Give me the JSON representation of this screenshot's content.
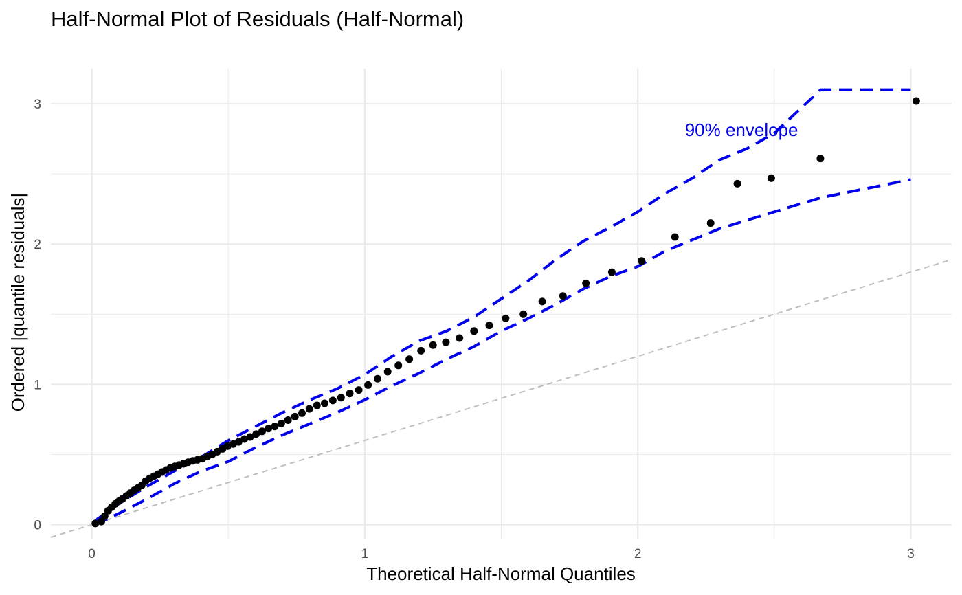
{
  "chart_data": {
    "type": "scatter",
    "title": "Half-Normal Plot of Residuals (Half-Normal)",
    "xlabel": "Theoretical Half-Normal Quantiles",
    "ylabel": "Ordered |quantile residuals|",
    "xlim": [
      -0.15,
      3.15
    ],
    "ylim": [
      -0.1,
      3.25
    ],
    "x_ticks": [
      0,
      1,
      2,
      3
    ],
    "y_ticks": [
      0,
      1,
      2,
      3
    ],
    "x_tick_labels": [
      "0",
      "1",
      "2",
      "3"
    ],
    "y_tick_labels": [
      "0",
      "1",
      "2",
      "3"
    ],
    "grid": true,
    "colors": {
      "points": "#000000",
      "envelope": "#0000ee",
      "reference_line": "#bebebe",
      "grid": "#ebebeb",
      "annotation": "#0000ee"
    },
    "reference_line": {
      "slope": 0.6,
      "intercept": 0.0
    },
    "annotation": {
      "text": "90% envelope",
      "x": 2.38,
      "y": 2.77
    },
    "points": {
      "x": [
        0.013,
        0.035,
        0.047,
        0.06,
        0.073,
        0.086,
        0.1,
        0.113,
        0.127,
        0.141,
        0.155,
        0.169,
        0.183,
        0.197,
        0.212,
        0.227,
        0.242,
        0.257,
        0.272,
        0.288,
        0.304,
        0.32,
        0.336,
        0.353,
        0.37,
        0.387,
        0.405,
        0.423,
        0.441,
        0.46,
        0.479,
        0.498,
        0.518,
        0.538,
        0.559,
        0.58,
        0.602,
        0.624,
        0.647,
        0.67,
        0.694,
        0.719,
        0.744,
        0.77,
        0.797,
        0.825,
        0.853,
        0.883,
        0.913,
        0.945,
        0.978,
        1.012,
        1.047,
        1.084,
        1.123,
        1.163,
        1.206,
        1.25,
        1.297,
        1.347,
        1.4,
        1.456,
        1.516,
        1.581,
        1.65,
        1.726,
        1.81,
        1.905,
        2.014,
        2.136,
        2.267,
        2.365,
        2.489,
        2.669,
        3.02
      ],
      "y": [
        0.008,
        0.022,
        0.06,
        0.1,
        0.125,
        0.148,
        0.168,
        0.185,
        0.205,
        0.225,
        0.245,
        0.262,
        0.28,
        0.31,
        0.33,
        0.345,
        0.36,
        0.375,
        0.39,
        0.405,
        0.415,
        0.425,
        0.435,
        0.445,
        0.455,
        0.462,
        0.47,
        0.485,
        0.5,
        0.52,
        0.54,
        0.56,
        0.575,
        0.59,
        0.61,
        0.625,
        0.645,
        0.665,
        0.685,
        0.7,
        0.72,
        0.745,
        0.77,
        0.795,
        0.825,
        0.85,
        0.865,
        0.885,
        0.905,
        0.935,
        0.96,
        0.995,
        1.04,
        1.09,
        1.135,
        1.18,
        1.24,
        1.28,
        1.3,
        1.33,
        1.38,
        1.42,
        1.47,
        1.5,
        1.59,
        1.63,
        1.72,
        1.8,
        1.88,
        2.05,
        2.15,
        2.43,
        2.47,
        2.61,
        3.02
      ]
    },
    "envelope_upper": {
      "x": [
        0.013,
        0.1,
        0.2,
        0.3,
        0.4,
        0.5,
        0.6,
        0.7,
        0.8,
        0.9,
        1.0,
        1.1,
        1.2,
        1.3,
        1.4,
        1.5,
        1.6,
        1.7,
        1.8,
        1.9,
        2.0,
        2.1,
        2.2,
        2.3,
        2.4,
        2.5,
        2.67,
        3.0
      ],
      "y": [
        0.03,
        0.15,
        0.27,
        0.38,
        0.48,
        0.6,
        0.7,
        0.8,
        0.89,
        0.97,
        1.07,
        1.2,
        1.31,
        1.38,
        1.48,
        1.61,
        1.74,
        1.89,
        2.02,
        2.12,
        2.23,
        2.36,
        2.47,
        2.6,
        2.68,
        2.79,
        3.1,
        3.1
      ]
    },
    "envelope_lower": {
      "x": [
        0.013,
        0.1,
        0.2,
        0.3,
        0.4,
        0.5,
        0.6,
        0.7,
        0.8,
        0.9,
        1.0,
        1.1,
        1.2,
        1.3,
        1.4,
        1.5,
        1.6,
        1.7,
        1.8,
        1.9,
        2.0,
        2.1,
        2.2,
        2.3,
        2.4,
        2.5,
        2.67,
        3.0
      ],
      "y": [
        0.0,
        0.08,
        0.18,
        0.29,
        0.38,
        0.45,
        0.55,
        0.64,
        0.72,
        0.8,
        0.89,
        0.99,
        1.08,
        1.18,
        1.27,
        1.38,
        1.47,
        1.57,
        1.68,
        1.77,
        1.84,
        1.95,
        2.03,
        2.11,
        2.17,
        2.23,
        2.33,
        2.46
      ]
    }
  }
}
